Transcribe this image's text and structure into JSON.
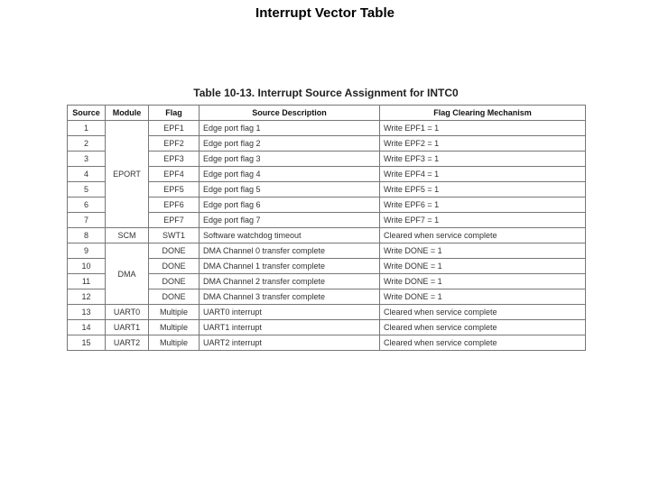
{
  "page": {
    "title": "Interrupt Vector Table"
  },
  "table": {
    "caption": "Table 10-13. Interrupt Source Assignment for INTC0",
    "columns": [
      "Source",
      "Module",
      "Flag",
      "Source Description",
      "Flag Clearing Mechanism"
    ],
    "col_align": [
      "center",
      "center",
      "center",
      "left",
      "left"
    ],
    "rows": [
      {
        "source": "1",
        "module": "EPORT",
        "module_rowspan": 7,
        "flag": "EPF1",
        "desc": "Edge port flag 1",
        "mech": "Write EPF1 = 1"
      },
      {
        "source": "2",
        "module": null,
        "flag": "EPF2",
        "desc": "Edge port flag 2",
        "mech": "Write EPF2 = 1"
      },
      {
        "source": "3",
        "module": null,
        "flag": "EPF3",
        "desc": "Edge port flag 3",
        "mech": "Write EPF3 = 1"
      },
      {
        "source": "4",
        "module": null,
        "flag": "EPF4",
        "desc": "Edge port flag 4",
        "mech": "Write EPF4 = 1"
      },
      {
        "source": "5",
        "module": null,
        "flag": "EPF5",
        "desc": "Edge port flag 5",
        "mech": "Write EPF5 = 1"
      },
      {
        "source": "6",
        "module": null,
        "flag": "EPF6",
        "desc": "Edge port flag 6",
        "mech": "Write EPF6 = 1"
      },
      {
        "source": "7",
        "module": null,
        "flag": "EPF7",
        "desc": "Edge port flag 7",
        "mech": "Write EPF7 = 1"
      },
      {
        "source": "8",
        "module": "SCM",
        "module_rowspan": 1,
        "flag": "SWT1",
        "desc": "Software watchdog timeout",
        "mech": "Cleared when service complete"
      },
      {
        "source": "9",
        "module": "DMA",
        "module_rowspan": 4,
        "flag": "DONE",
        "desc": "DMA Channel 0 transfer complete",
        "mech": "Write DONE = 1"
      },
      {
        "source": "10",
        "module": null,
        "flag": "DONE",
        "desc": "DMA Channel 1 transfer complete",
        "mech": "Write DONE = 1"
      },
      {
        "source": "11",
        "module": null,
        "flag": "DONE",
        "desc": "DMA Channel 2 transfer complete",
        "mech": "Write DONE = 1"
      },
      {
        "source": "12",
        "module": null,
        "flag": "DONE",
        "desc": "DMA Channel 3 transfer complete",
        "mech": "Write DONE = 1"
      },
      {
        "source": "13",
        "module": "UART0",
        "module_rowspan": 1,
        "flag": "Multiple",
        "desc": "UART0 interrupt",
        "mech": "Cleared when service complete"
      },
      {
        "source": "14",
        "module": "UART1",
        "module_rowspan": 1,
        "flag": "Multiple",
        "desc": "UART1 interrupt",
        "mech": "Cleared when service complete"
      },
      {
        "source": "15",
        "module": "UART2",
        "module_rowspan": 1,
        "flag": "Multiple",
        "desc": "UART2 interrupt",
        "mech": "Cleared when service complete"
      }
    ]
  }
}
